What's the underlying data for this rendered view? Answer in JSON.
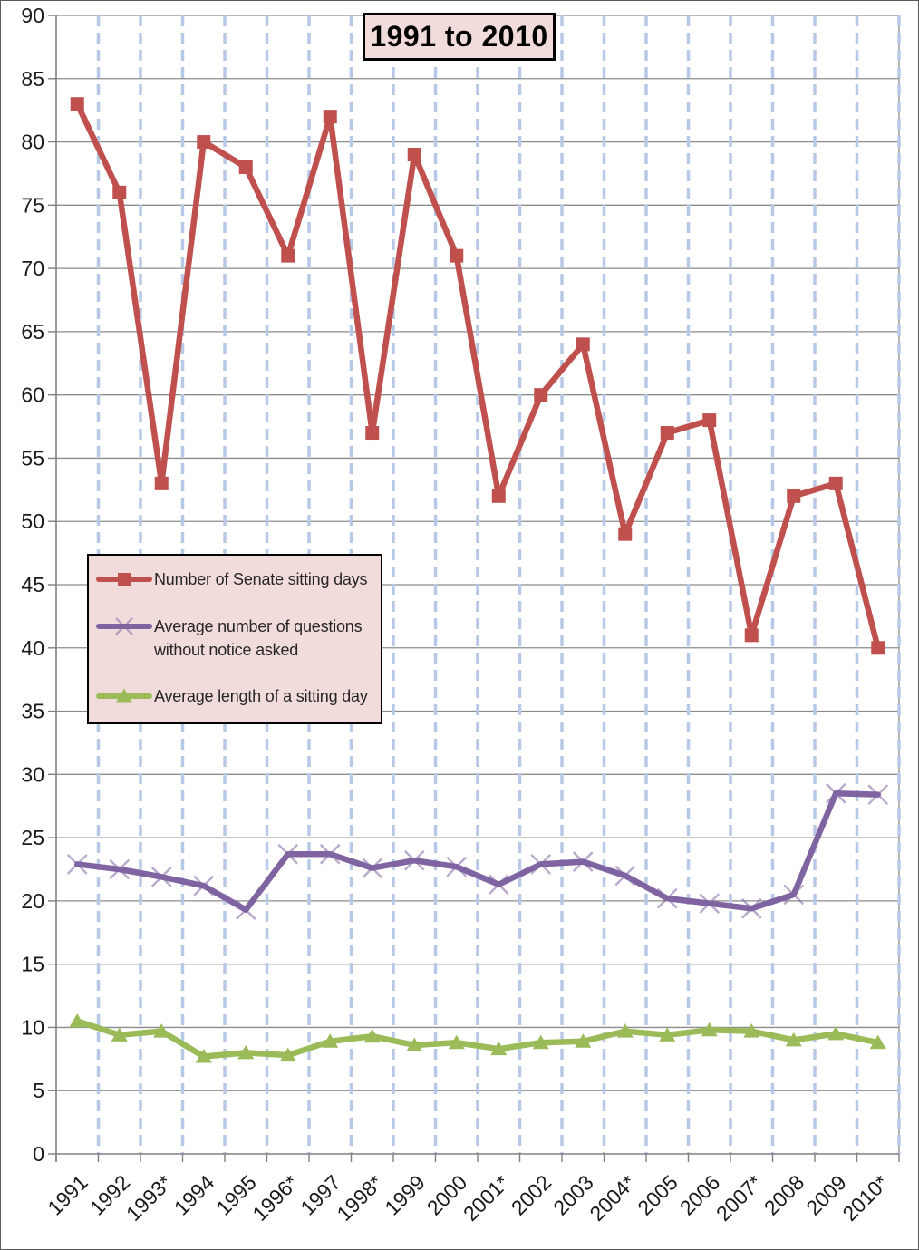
{
  "window": {
    "background": "#FFFFFF",
    "border_color": "#5A5A5A"
  },
  "chart_data": {
    "type": "line",
    "title": "1991 to 2010",
    "xlabel": "",
    "ylabel": "",
    "categories": [
      "1991",
      "1992",
      "1993*",
      "1994",
      "1995",
      "1996*",
      "1997",
      "1998*",
      "1999",
      "2000",
      "2001*",
      "2002",
      "2003",
      "2004*",
      "2005",
      "2006",
      "2007*",
      "2008",
      "2009",
      "2010*"
    ],
    "series": [
      {
        "name": "Number of Senate sitting days",
        "marker": "square",
        "color": "#C0504D",
        "values": [
          83,
          76,
          53,
          80,
          78,
          71,
          82,
          57,
          79,
          71,
          52,
          60,
          64,
          49,
          57,
          58,
          41,
          52,
          53,
          40
        ]
      },
      {
        "name": "Average number of questions without notice asked",
        "marker": "x",
        "color": "#8064A2",
        "values": [
          22.9,
          22.5,
          21.9,
          21.2,
          19.3,
          23.7,
          23.7,
          22.6,
          23.2,
          22.7,
          21.3,
          22.9,
          23.1,
          22.0,
          20.2,
          19.8,
          19.4,
          20.5,
          28.5,
          28.4
        ]
      },
      {
        "name": "Average length of a sitting day",
        "marker": "triangle",
        "color": "#9BBB59",
        "values": [
          10.5,
          9.4,
          9.7,
          7.7,
          8.0,
          7.8,
          8.9,
          9.3,
          8.6,
          8.8,
          8.3,
          8.8,
          8.9,
          9.7,
          9.4,
          9.8,
          9.7,
          9.0,
          9.5,
          8.8
        ]
      }
    ],
    "ylim": [
      0,
      90
    ],
    "ytick_step": 5,
    "grid": {
      "horizontal_solid": true,
      "vertical_dashed": true
    },
    "legend_position": "middle-left",
    "styles": {
      "horizontal_gridline_color": "#8C8C8C",
      "vertical_gridline_color": "#B7C9E6",
      "axis_color": "#808080",
      "tick_label_color": "#1A1A1A",
      "title_box_background": "#F2DCDB",
      "title_box_border": "#000000",
      "legend_background": "#F2DCDB",
      "legend_border": "#000000",
      "legend_text_color": "#262626",
      "x_marker_opacity": 0.55
    }
  }
}
